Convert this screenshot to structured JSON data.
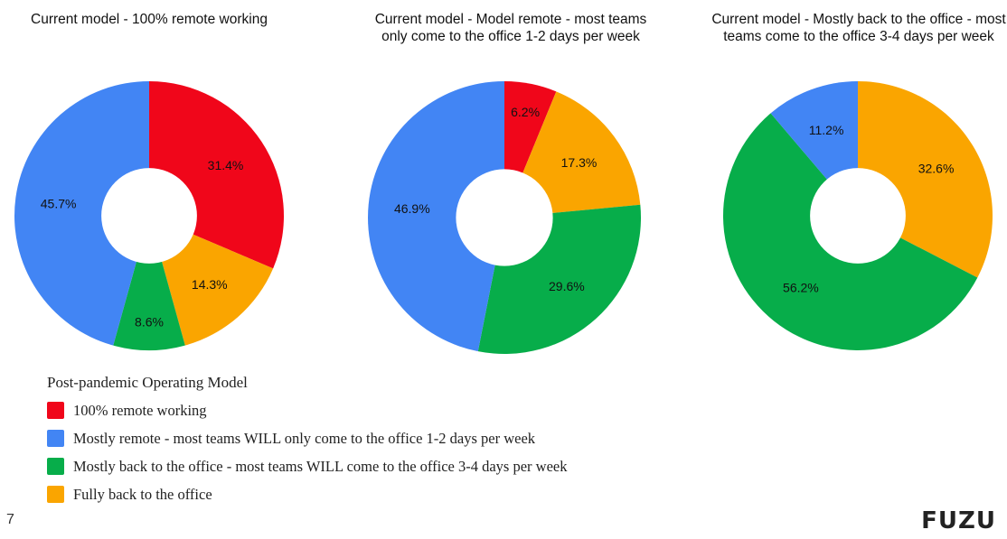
{
  "page_number": "7",
  "brand": "FUZU",
  "colors": {
    "red": "#f0061a",
    "blue": "#4285f4",
    "green": "#07ad4a",
    "orange": "#faa500"
  },
  "legend": {
    "title": "Post-pandemic Operating Model",
    "items": [
      {
        "label": "100% remote working",
        "color": "#f0061a"
      },
      {
        "label": "Mostly remote - most teams WILL only come to the office 1-2 days per week",
        "color": "#4285f4"
      },
      {
        "label": "Mostly back to the office - most teams WILL come to the office 3-4 days per week",
        "color": "#07ad4a"
      },
      {
        "label": "Fully back to the office",
        "color": "#faa500"
      }
    ]
  },
  "chart_data": [
    {
      "type": "pie",
      "title": "Current model - 100% remote working",
      "series": [
        {
          "name": "100% remote working",
          "value": 31.4,
          "label": "31.4%",
          "color": "#f0061a"
        },
        {
          "name": "Fully back to the office",
          "value": 14.3,
          "label": "14.3%",
          "color": "#faa500"
        },
        {
          "name": "Mostly back to the office - most teams WILL come to the office 3-4 days per week",
          "value": 8.6,
          "label": "8.6%",
          "color": "#07ad4a"
        },
        {
          "name": "Mostly remote - most teams WILL only come to the office 1-2 days per week",
          "value": 45.7,
          "label": "45.7%",
          "color": "#4285f4"
        }
      ]
    },
    {
      "type": "pie",
      "title": "Current model - Model remote - most teams only come to the office 1-2 days per week",
      "series": [
        {
          "name": "100% remote working",
          "value": 6.2,
          "label": "6.2%",
          "color": "#f0061a"
        },
        {
          "name": "Fully back to the office",
          "value": 17.3,
          "label": "17.3%",
          "color": "#faa500"
        },
        {
          "name": "Mostly back to the office - most teams WILL come to the office 3-4 days per week",
          "value": 29.6,
          "label": "29.6%",
          "color": "#07ad4a"
        },
        {
          "name": "Mostly remote - most teams WILL only come to the office 1-2 days per week",
          "value": 46.9,
          "label": "46.9%",
          "color": "#4285f4"
        }
      ]
    },
    {
      "type": "pie",
      "title": "Current model - Mostly back to the office - most teams come to the office 3-4 days per week",
      "series": [
        {
          "name": "Fully back to the office",
          "value": 32.6,
          "label": "32.6%",
          "color": "#faa500"
        },
        {
          "name": "Mostly back to the office - most teams WILL come to the office 3-4 days per week",
          "value": 56.2,
          "label": "56.2%",
          "color": "#07ad4a"
        },
        {
          "name": "Mostly remote - most teams WILL only come to the office 1-2 days per week",
          "value": 11.2,
          "label": "11.2%",
          "color": "#4285f4"
        }
      ]
    }
  ]
}
